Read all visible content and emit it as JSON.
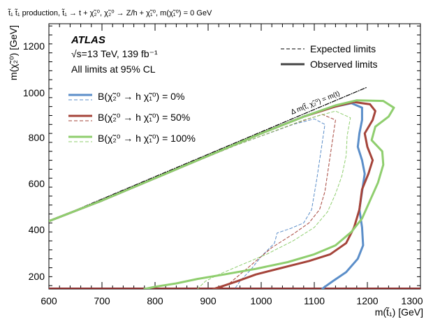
{
  "header": {
    "process": "t̃₁ t̃₁ production, t̃₁ → t + χ̃₂⁰, χ̃₂⁰ → Z/h + χ̃₁⁰, m(χ̃₁⁰) = 0 GeV"
  },
  "info": {
    "experiment": "ATLAS",
    "energy": "√s=13 TeV, 139 fb⁻¹",
    "cl": "All limits at 95% CL"
  },
  "legend_style": {
    "expected": "Expected limits",
    "observed": "Observed limits"
  },
  "legend_series": [
    "B(χ̃₂⁰ → h χ̃₁⁰) = 0%",
    "B(χ̃₂⁰ → h χ̃₁⁰) = 50%",
    "B(χ̃₂⁰ → h χ̃₁⁰) = 100%"
  ],
  "kinematic_label": "Δ m(t̃, χ̃₂⁰) = m(t)",
  "axes": {
    "xlabel": "m(t̃₁) [GeV]",
    "ylabel": "m(χ̃₂⁰) [GeV]",
    "xticks": [
      "600",
      "700",
      "800",
      "900",
      "1000",
      "1100",
      "1200",
      "1300"
    ],
    "yticks": [
      "200",
      "400",
      "600",
      "800",
      "1000",
      "1200"
    ]
  },
  "chart_data": {
    "type": "line",
    "xlim": [
      600,
      1300
    ],
    "ylim": [
      125,
      1310
    ],
    "kinematic_limit": [
      [
        600,
        427
      ],
      [
        1200,
        1027
      ]
    ],
    "series": [
      {
        "name": "B(χ̃₂⁰ → h χ̃₁⁰) = 0%",
        "color": "#5b8ec9",
        "observed": [
          [
            600,
            428
          ],
          [
            700,
            520
          ],
          [
            800,
            620
          ],
          [
            900,
            720
          ],
          [
            1000,
            820
          ],
          [
            1080,
            895
          ],
          [
            1130,
            935
          ],
          [
            1170,
            955
          ],
          [
            1190,
            935
          ],
          [
            1190,
            880
          ],
          [
            1185,
            820
          ],
          [
            1182,
            760
          ],
          [
            1190,
            700
          ],
          [
            1195,
            640
          ],
          [
            1190,
            560
          ],
          [
            1185,
            480
          ],
          [
            1190,
            400
          ],
          [
            1192,
            320
          ],
          [
            1182,
            260
          ],
          [
            1160,
            200
          ],
          [
            1135,
            160
          ],
          [
            1120,
            135
          ],
          [
            1115,
            125
          ]
        ],
        "expected": [
          [
            600,
            428
          ],
          [
            800,
            620
          ],
          [
            950,
            765
          ],
          [
            1060,
            860
          ],
          [
            1100,
            885
          ],
          [
            1120,
            860
          ],
          [
            1115,
            780
          ],
          [
            1110,
            700
          ],
          [
            1105,
            620
          ],
          [
            1100,
            550
          ],
          [
            1095,
            480
          ],
          [
            1080,
            420
          ],
          [
            1055,
            395
          ],
          [
            1030,
            375
          ],
          [
            1025,
            330
          ],
          [
            1000,
            270
          ],
          [
            980,
            210
          ],
          [
            960,
            160
          ],
          [
            950,
            125
          ]
        ]
      },
      {
        "name": "B(χ̃₂⁰ → h χ̃₁⁰) = 50%",
        "color": "#a5443a",
        "observed": [
          [
            600,
            428
          ],
          [
            700,
            520
          ],
          [
            800,
            620
          ],
          [
            900,
            720
          ],
          [
            1000,
            820
          ],
          [
            1080,
            895
          ],
          [
            1140,
            940
          ],
          [
            1175,
            960
          ],
          [
            1205,
            950
          ],
          [
            1215,
            920
          ],
          [
            1210,
            880
          ],
          [
            1195,
            820
          ],
          [
            1200,
            760
          ],
          [
            1210,
            700
          ],
          [
            1202,
            640
          ],
          [
            1190,
            570
          ],
          [
            1185,
            480
          ],
          [
            1175,
            400
          ],
          [
            1160,
            330
          ],
          [
            1130,
            280
          ],
          [
            1090,
            250
          ],
          [
            1040,
            220
          ],
          [
            990,
            190
          ],
          [
            955,
            160
          ],
          [
            930,
            140
          ],
          [
            910,
            125
          ]
        ],
        "expected": [
          [
            600,
            428
          ],
          [
            800,
            620
          ],
          [
            950,
            765
          ],
          [
            1070,
            870
          ],
          [
            1115,
            905
          ],
          [
            1140,
            880
          ],
          [
            1135,
            800
          ],
          [
            1130,
            720
          ],
          [
            1125,
            640
          ],
          [
            1120,
            560
          ],
          [
            1110,
            480
          ],
          [
            1090,
            420
          ],
          [
            1060,
            370
          ],
          [
            1020,
            310
          ],
          [
            990,
            250
          ],
          [
            960,
            190
          ],
          [
            940,
            150
          ],
          [
            920,
            125
          ]
        ]
      },
      {
        "name": "B(χ̃₂⁰ → h χ̃₁⁰) = 100%",
        "color": "#8fce6e",
        "observed": [
          [
            600,
            428
          ],
          [
            700,
            520
          ],
          [
            800,
            620
          ],
          [
            900,
            720
          ],
          [
            1000,
            820
          ],
          [
            1080,
            895
          ],
          [
            1140,
            945
          ],
          [
            1180,
            968
          ],
          [
            1230,
            965
          ],
          [
            1250,
            935
          ],
          [
            1240,
            895
          ],
          [
            1215,
            850
          ],
          [
            1208,
            790
          ],
          [
            1228,
            740
          ],
          [
            1230,
            680
          ],
          [
            1220,
            600
          ],
          [
            1205,
            520
          ],
          [
            1190,
            440
          ],
          [
            1170,
            380
          ],
          [
            1140,
            320
          ],
          [
            1100,
            280
          ],
          [
            1050,
            245
          ],
          [
            990,
            215
          ],
          [
            930,
            190
          ],
          [
            880,
            170
          ],
          [
            840,
            150
          ],
          [
            800,
            135
          ],
          [
            780,
            125
          ]
        ],
        "expected": [
          [
            600,
            428
          ],
          [
            800,
            620
          ],
          [
            950,
            765
          ],
          [
            1080,
            880
          ],
          [
            1140,
            920
          ],
          [
            1168,
            890
          ],
          [
            1162,
            810
          ],
          [
            1160,
            720
          ],
          [
            1152,
            630
          ],
          [
            1140,
            550
          ],
          [
            1125,
            470
          ],
          [
            1100,
            400
          ],
          [
            1060,
            340
          ],
          [
            1010,
            280
          ],
          [
            960,
            230
          ],
          [
            920,
            190
          ],
          [
            895,
            160
          ],
          [
            880,
            125
          ]
        ]
      }
    ]
  }
}
